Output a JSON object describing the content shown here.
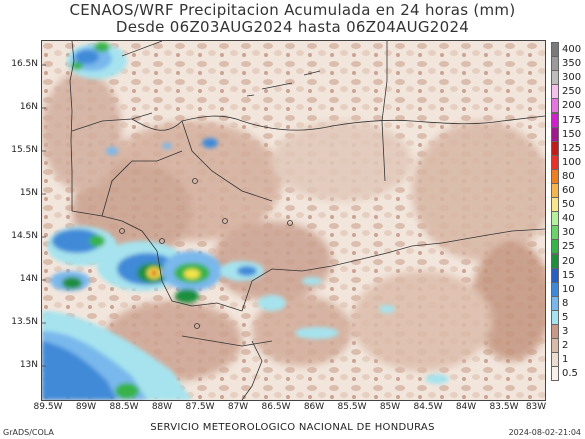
{
  "title": {
    "line1": "CENAOS/WRF Precipitacion Acumulada en 24 horas (mm)",
    "line2": "Desde 06Z03AUG2024 hasta 06Z04AUG2024"
  },
  "map": {
    "lat_ticks": [
      "16.5N",
      "16N",
      "15.5N",
      "15N",
      "14.5N",
      "14N",
      "13.5N",
      "13N"
    ],
    "lon_ticks": [
      "89.5W",
      "89W",
      "88.5W",
      "88W",
      "87.5W",
      "87W",
      "86.5W",
      "86W",
      "85.5W",
      "85W",
      "84.5W",
      "84W",
      "83.5W",
      "83W"
    ],
    "colors": {
      "land_low": "#f4ebe4",
      "land_tan": "#d9b9a8",
      "land_tan_dark": "#c79c88",
      "ocean_light": "#a6e3ee",
      "blue": "#3f8ad8",
      "blue_dark": "#2a5fc2",
      "green": "#1e9f3b",
      "green_light": "#6ad36a",
      "yellow": "#f4e44a",
      "red": "#e02a23"
    }
  },
  "colorbar": {
    "labels": [
      "400",
      "350",
      "300",
      "250",
      "200",
      "175",
      "150",
      "125",
      "100",
      "80",
      "60",
      "50",
      "40",
      "30",
      "25",
      "20",
      "15",
      "10",
      "8",
      "5",
      "3",
      "2",
      "1",
      "0.5"
    ],
    "colors": [
      "#7a7a7a",
      "#9b9b9b",
      "#bdbdbd",
      "#f4c0ee",
      "#e775df",
      "#d11fcf",
      "#a3178f",
      "#c41b1b",
      "#e9312a",
      "#f07d1e",
      "#f5b54e",
      "#f9e68c",
      "#b6f09e",
      "#6ad36a",
      "#37b34a",
      "#1e8f3c",
      "#2a5fc2",
      "#3f8ad8",
      "#79b8ec",
      "#a6e3ee",
      "#c69a86",
      "#d9b9a8",
      "#eddcd0",
      "#f7f1ec"
    ]
  },
  "footer": {
    "left": "GrADS/COLA",
    "center": "SERVICIO METEOROLOGICO NACIONAL DE HONDURAS",
    "right": "2024-08-02-21:04"
  }
}
